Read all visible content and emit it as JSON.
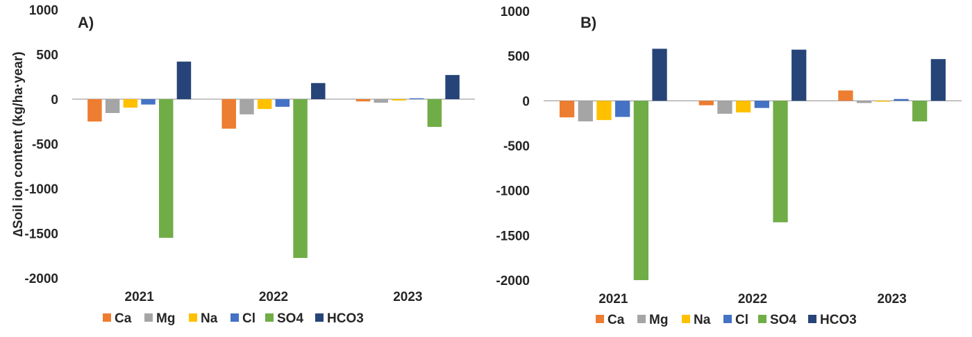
{
  "y_axis_label": "∆Soil ion content (kg/ha·year)",
  "legend_order": [
    "Ca",
    "Mg",
    "Na",
    "Cl",
    "SO4",
    "HCO3"
  ],
  "colors": {
    "Ca": "#ED7D31",
    "Mg": "#A5A5A5",
    "Na": "#FFC000",
    "Cl": "#4472C4",
    "SO4": "#70AD47",
    "HCO3": "#264478"
  },
  "chart_data": [
    {
      "type": "bar",
      "panel_label": "A)",
      "categories": [
        "2021",
        "2022",
        "2023"
      ],
      "ylim": [
        -2000,
        1000
      ],
      "yticks": [
        "1000",
        "500",
        "0",
        "-500",
        "-1000",
        "-1500",
        "-2000"
      ],
      "ylabel": "∆Soil ion content (kg/ha·year)",
      "legend_position": "bottom",
      "grid": false,
      "series": [
        {
          "name": "Ca",
          "values": [
            -250,
            -330,
            -25
          ]
        },
        {
          "name": "Mg",
          "values": [
            -155,
            -170,
            -40
          ]
        },
        {
          "name": "Na",
          "values": [
            -95,
            -110,
            -15
          ]
        },
        {
          "name": "Cl",
          "values": [
            -60,
            -85,
            10
          ]
        },
        {
          "name": "SO4",
          "values": [
            -1550,
            -1775,
            -310
          ]
        },
        {
          "name": "HCO3",
          "values": [
            420,
            180,
            270
          ]
        }
      ]
    },
    {
      "type": "bar",
      "panel_label": "B)",
      "categories": [
        "2021",
        "2022",
        "2023"
      ],
      "ylim": [
        -2000,
        1000
      ],
      "yticks": [
        "1000",
        "500",
        "0",
        "-500",
        "-1000",
        "-1500",
        "-2000"
      ],
      "ylabel": "",
      "legend_position": "bottom",
      "grid": false,
      "series": [
        {
          "name": "Ca",
          "values": [
            -185,
            -50,
            115
          ]
        },
        {
          "name": "Mg",
          "values": [
            -230,
            -145,
            -25
          ]
        },
        {
          "name": "Na",
          "values": [
            -215,
            -130,
            -10
          ]
        },
        {
          "name": "Cl",
          "values": [
            -180,
            -80,
            20
          ]
        },
        {
          "name": "SO4",
          "values": [
            -2000,
            -1355,
            -230
          ]
        },
        {
          "name": "HCO3",
          "values": [
            580,
            570,
            465
          ]
        }
      ]
    }
  ]
}
